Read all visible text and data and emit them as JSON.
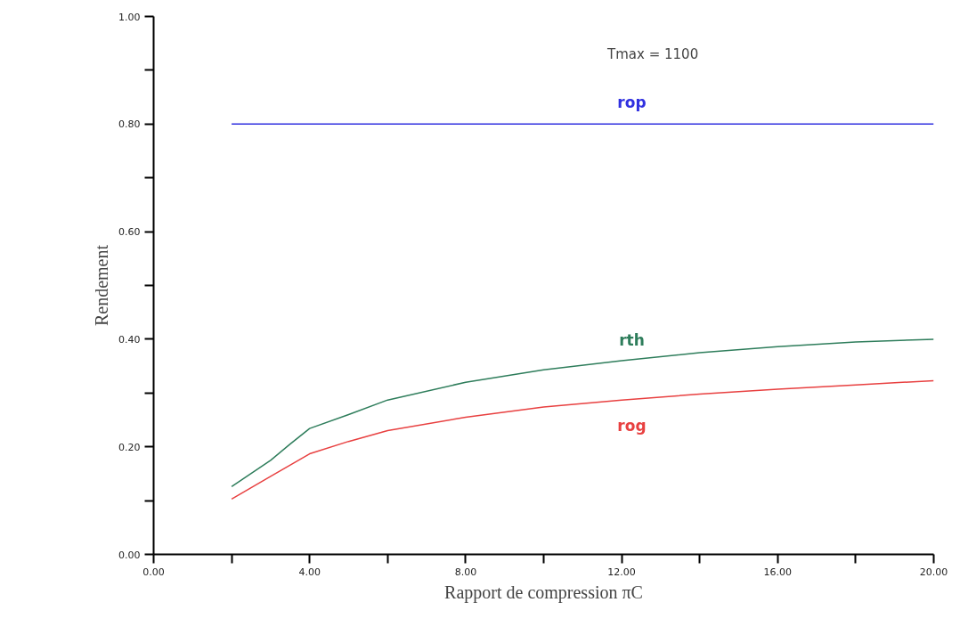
{
  "chart_data": {
    "type": "line",
    "xlabel": "Rapport de compression πC",
    "ylabel": "Rendement",
    "annotations": [
      "Tmax = 1100"
    ],
    "xlim": [
      0,
      20
    ],
    "ylim": [
      0,
      1
    ],
    "xticks": [
      {
        "value": 0,
        "label": "0.00"
      },
      {
        "value": 2,
        "label": null
      },
      {
        "value": 4,
        "label": "4.00"
      },
      {
        "value": 6,
        "label": null
      },
      {
        "value": 8,
        "label": "8.00"
      },
      {
        "value": 10,
        "label": null
      },
      {
        "value": 12,
        "label": "12.00"
      },
      {
        "value": 14,
        "label": null
      },
      {
        "value": 16,
        "label": "16.00"
      },
      {
        "value": 18,
        "label": null
      },
      {
        "value": 20,
        "label": "20.00"
      }
    ],
    "yticks": [
      {
        "value": 0,
        "label": "0.00"
      },
      {
        "value": 0.1,
        "label": null
      },
      {
        "value": 0.2,
        "label": "0.20"
      },
      {
        "value": 0.3,
        "label": null
      },
      {
        "value": 0.4,
        "label": "0.40"
      },
      {
        "value": 0.5,
        "label": null
      },
      {
        "value": 0.6,
        "label": "0.60"
      },
      {
        "value": 0.7,
        "label": null
      },
      {
        "value": 0.8,
        "label": "0.80"
      },
      {
        "value": 0.9,
        "label": null
      },
      {
        "value": 1,
        "label": "1.00"
      }
    ],
    "grid": false,
    "marker": "none",
    "line_style": "solid",
    "series": [
      {
        "name": "rop",
        "color": "#3030e0",
        "x": [
          2,
          20
        ],
        "values": [
          0.8,
          0.8
        ]
      },
      {
        "name": "rth",
        "color": "#2e7d5b",
        "x": [
          2,
          3,
          3.5,
          4,
          5,
          6,
          8,
          10,
          12,
          14,
          16,
          18,
          20
        ],
        "values": [
          0.126,
          0.175,
          0.205,
          0.234,
          0.26,
          0.287,
          0.32,
          0.343,
          0.36,
          0.375,
          0.386,
          0.395,
          0.4
        ]
      },
      {
        "name": "rog",
        "color": "#e84040",
        "x": [
          2,
          3,
          4,
          5,
          6,
          8,
          10,
          12,
          14,
          16,
          18,
          20
        ],
        "values": [
          0.103,
          0.145,
          0.187,
          0.21,
          0.23,
          0.255,
          0.274,
          0.287,
          0.298,
          0.307,
          0.315,
          0.323
        ]
      }
    ]
  }
}
